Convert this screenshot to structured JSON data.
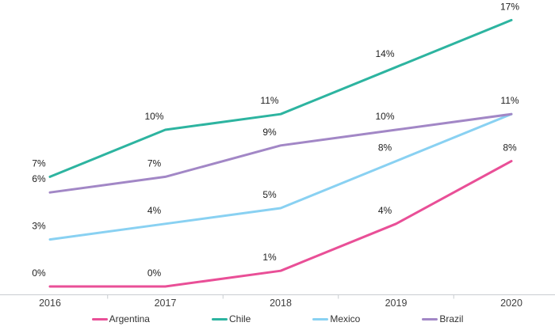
{
  "chart_data": {
    "type": "line",
    "title": "",
    "xlabel": "",
    "ylabel": "",
    "x": [
      "2016",
      "2017",
      "2018",
      "2019",
      "2020"
    ],
    "series": [
      {
        "name": "Argentina",
        "color": "#E94F97",
        "values": [
          0,
          0,
          1,
          4,
          8
        ],
        "labels": [
          "0%",
          "0%",
          "1%",
          "4%",
          "8%"
        ]
      },
      {
        "name": "Chile",
        "color": "#2DB4A0",
        "values": [
          7,
          10,
          11,
          14,
          17
        ],
        "labels": [
          "7%",
          "10%",
          "11%",
          "14%",
          "17%"
        ]
      },
      {
        "name": "Mexico",
        "color": "#89D1F2",
        "values": [
          3,
          4,
          5,
          8,
          11
        ],
        "labels": [
          "3%",
          "4%",
          "5%",
          "8%",
          "11%"
        ],
        "hidden_label_indexes": [
          4
        ]
      },
      {
        "name": "Brazil",
        "color": "#A287C6",
        "values": [
          6,
          7,
          9,
          10,
          11
        ],
        "labels": [
          "6%",
          "7%",
          "9%",
          "10%",
          "11%"
        ]
      }
    ],
    "ylim": [
      0,
      18
    ],
    "grid": false,
    "y_axis_visible": false,
    "legend_position": "bottom",
    "legend_labels": [
      "Argentina",
      "Chile",
      "Mexico",
      "Brazil"
    ],
    "colors": {
      "axis": "#C9CDD1",
      "tick": "#C9CDD1",
      "axis_label": "#3F3F3F",
      "data_label": "#222222",
      "background": "#FFFFFF"
    }
  }
}
